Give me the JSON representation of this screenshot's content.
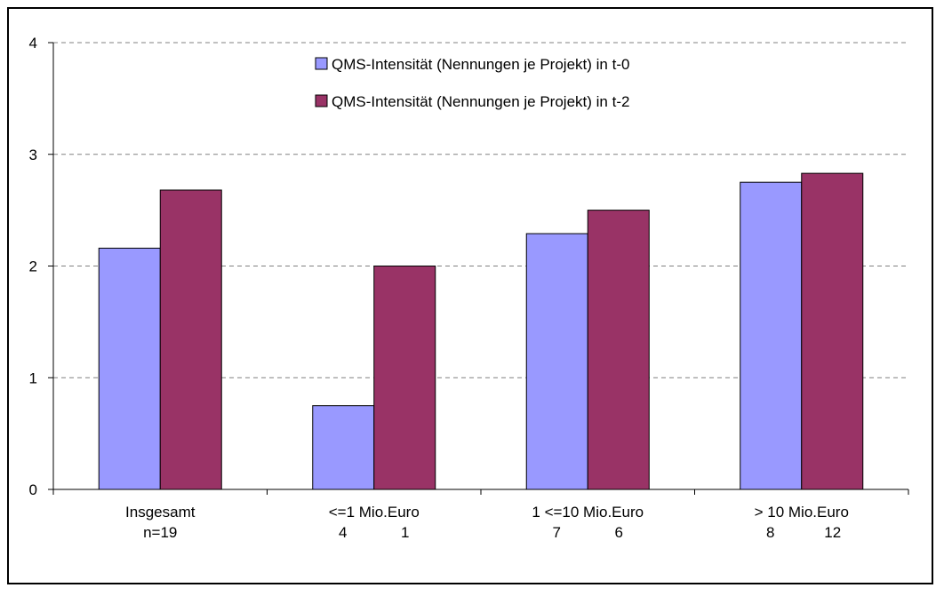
{
  "chart_data": {
    "type": "bar",
    "title": "",
    "xlabel": "",
    "ylabel": "",
    "ylim": [
      0,
      4
    ],
    "yticks": [
      0,
      1,
      2,
      3,
      4
    ],
    "grid": "horizontal dashed",
    "legend_position": "top-center",
    "categories": [
      "Insgesamt",
      "<=1 Mio.Euro",
      "1 <=10 Mio.Euro",
      "> 10 Mio.Euro"
    ],
    "category_sublabels": [
      [
        "n=19"
      ],
      [
        "4",
        "1"
      ],
      [
        "7",
        "6"
      ],
      [
        "8",
        "12"
      ]
    ],
    "series": [
      {
        "name": "QMS-Intensität (Nennungen je Projekt) in t-0",
        "color": "#9999ff",
        "values": [
          2.16,
          0.75,
          2.29,
          2.75
        ]
      },
      {
        "name": "QMS-Intensität (Nennungen je Projekt) in t-2",
        "color": "#993366",
        "values": [
          2.68,
          2.0,
          2.5,
          2.83
        ]
      }
    ]
  }
}
